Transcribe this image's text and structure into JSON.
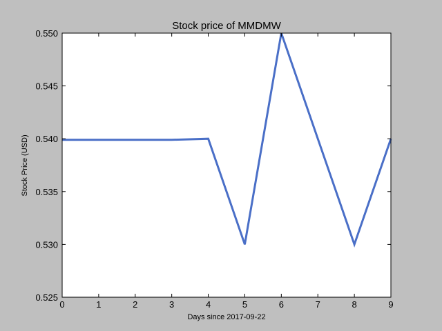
{
  "chart_data": {
    "type": "line",
    "title": "Stock price of MMDMW",
    "xlabel": "Days since 2017-09-22",
    "ylabel": "Stock Price (USD)",
    "xlim": [
      0,
      9
    ],
    "ylim": [
      0.525,
      0.55
    ],
    "x_ticks": [
      0,
      1,
      2,
      3,
      4,
      5,
      6,
      7,
      8,
      9
    ],
    "x_tick_labels": [
      "0",
      "1",
      "2",
      "3",
      "4",
      "5",
      "6",
      "7",
      "8",
      "9"
    ],
    "y_ticks": [
      0.525,
      0.53,
      0.535,
      0.54,
      0.545,
      0.55
    ],
    "y_tick_labels": [
      "0.525",
      "0.530",
      "0.535",
      "0.540",
      "0.545",
      "0.550"
    ],
    "grid": false,
    "legend": "none",
    "series": [
      {
        "color": "#4a6fc7",
        "x": [
          0,
          3,
          4,
          5,
          6,
          7,
          8,
          9
        ],
        "y": [
          0.5399,
          0.5399,
          0.54,
          0.53,
          0.55,
          0.54,
          0.53,
          0.54
        ]
      }
    ]
  }
}
